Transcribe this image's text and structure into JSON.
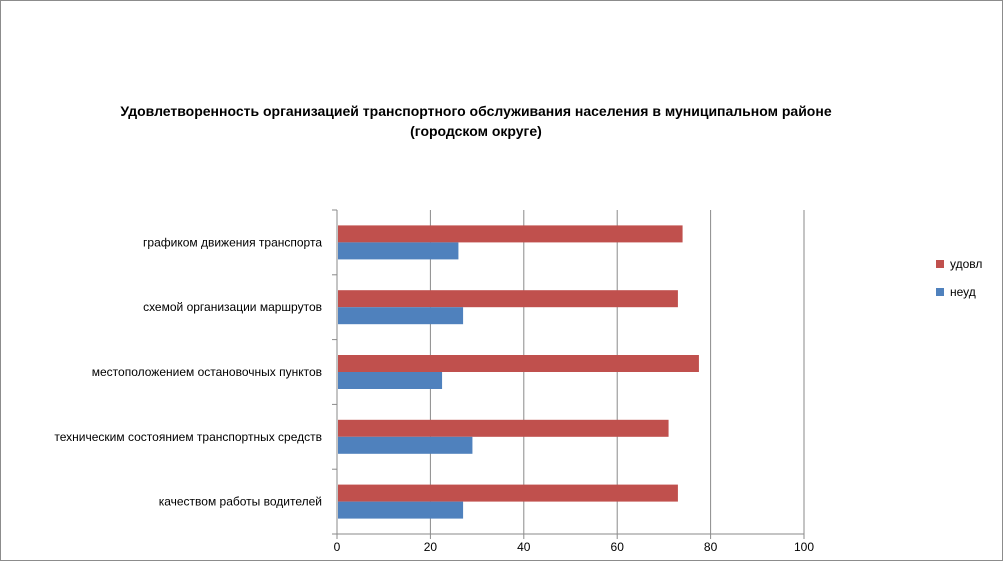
{
  "chart_data": {
    "type": "bar",
    "orientation": "horizontal",
    "title_lines": [
      "Удовлетворенность организацией транспортного обслуживания населения в муниципальном районе",
      "(городском округе)"
    ],
    "categories": [
      "графиком движения транспорта",
      "схемой организации маршрутов",
      "местоположением остановочных пунктов",
      "техническим состоянием транспортных средств",
      "качеством работы водителей"
    ],
    "series": [
      {
        "name": "удовл",
        "color": "#C0504D",
        "values": [
          74,
          73,
          77.5,
          71,
          73
        ]
      },
      {
        "name": "неуд",
        "color": "#4F81BD",
        "values": [
          26,
          27,
          22.5,
          29,
          27
        ]
      }
    ],
    "xlim": [
      0,
      100
    ],
    "xticks": [
      0,
      20,
      40,
      60,
      80,
      100
    ],
    "grid": true,
    "legend_position": "right"
  }
}
